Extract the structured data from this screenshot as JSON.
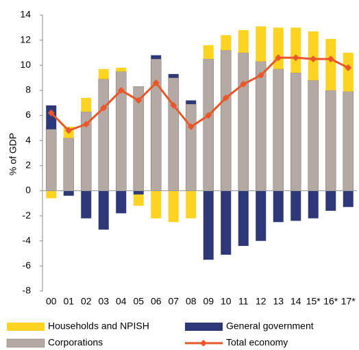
{
  "chart_data": {
    "type": "bar",
    "stacked": true,
    "y_label": "% of GDP",
    "categories": [
      "00",
      "01",
      "02",
      "03",
      "04",
      "05",
      "06",
      "07",
      "08",
      "09",
      "10",
      "11",
      "12",
      "13",
      "14",
      "15*",
      "16*",
      "17*"
    ],
    "ylim": [
      -8,
      14
    ],
    "yticks": [
      -8,
      -6,
      -4,
      -2,
      0,
      2,
      4,
      6,
      8,
      10,
      12,
      14
    ],
    "series": [
      {
        "name": "Corporations",
        "color": "#b5aaa3",
        "values": [
          4.9,
          4.2,
          6.3,
          8.9,
          9.5,
          8.3,
          10.5,
          9.0,
          6.9,
          10.5,
          11.2,
          11.0,
          10.3,
          9.7,
          9.4,
          8.8,
          8.0,
          7.9
        ]
      },
      {
        "name": "General government",
        "color": "#2e3878",
        "values": [
          1.9,
          -0.4,
          -2.2,
          -3.1,
          -1.8,
          -0.3,
          0.3,
          0.3,
          0.3,
          -5.5,
          -5.1,
          -4.4,
          -4.0,
          -2.5,
          -2.4,
          -2.2,
          -1.6,
          -1.3
        ]
      },
      {
        "name": "Households and NPISH",
        "color": "#ffd320",
        "values": [
          -0.6,
          0.9,
          1.1,
          0.8,
          0.3,
          -0.9,
          -2.2,
          -2.5,
          -2.2,
          1.1,
          1.2,
          1.8,
          2.8,
          3.3,
          3.6,
          3.9,
          4.1,
          3.1
        ]
      },
      {
        "name": "Total economy",
        "type": "line",
        "color": "#e8562a",
        "values": [
          6.2,
          4.8,
          5.3,
          6.6,
          8.0,
          7.2,
          8.6,
          6.8,
          5.1,
          6.0,
          7.4,
          8.5,
          9.2,
          10.6,
          10.6,
          10.5,
          10.5,
          9.8
        ]
      }
    ]
  }
}
